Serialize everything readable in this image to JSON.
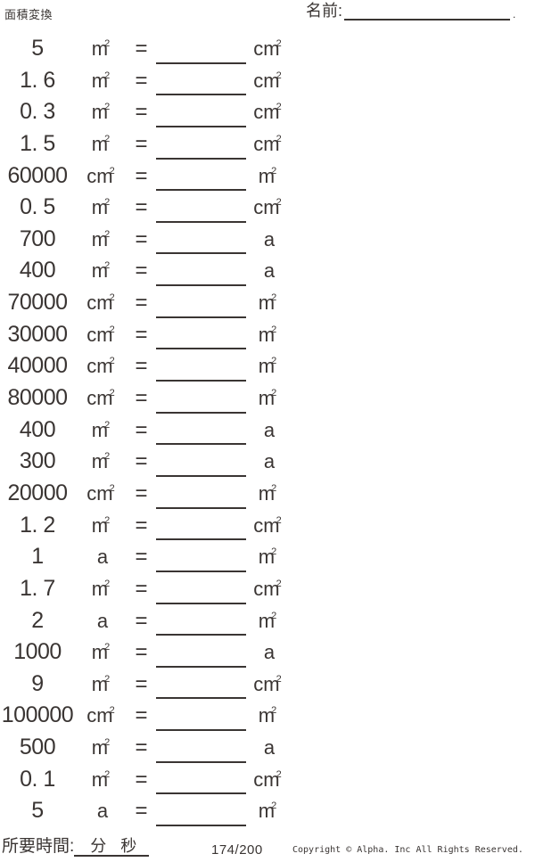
{
  "page": {
    "title": "面積変換",
    "name_label": "名前:",
    "name_suffix": "."
  },
  "colors": {
    "ink": "#3a3533",
    "background": "#ffffff"
  },
  "equals_sign": "=",
  "problems": [
    {
      "value": "5",
      "from_base": "m",
      "from_sup": "2",
      "to_base": "cm",
      "to_sup": "2"
    },
    {
      "value": "1. 6",
      "from_base": "m",
      "from_sup": "2",
      "to_base": "cm",
      "to_sup": "2"
    },
    {
      "value": "0. 3",
      "from_base": "m",
      "from_sup": "2",
      "to_base": "cm",
      "to_sup": "2"
    },
    {
      "value": "1. 5",
      "from_base": "m",
      "from_sup": "2",
      "to_base": "cm",
      "to_sup": "2"
    },
    {
      "value": "60000",
      "from_base": "cm",
      "from_sup": "2",
      "to_base": "m",
      "to_sup": "2"
    },
    {
      "value": "0. 5",
      "from_base": "m",
      "from_sup": "2",
      "to_base": "cm",
      "to_sup": "2"
    },
    {
      "value": "700",
      "from_base": "m",
      "from_sup": "2",
      "to_base": "a",
      "to_sup": ""
    },
    {
      "value": "400",
      "from_base": "m",
      "from_sup": "2",
      "to_base": "a",
      "to_sup": ""
    },
    {
      "value": "70000",
      "from_base": "cm",
      "from_sup": "2",
      "to_base": "m",
      "to_sup": "2"
    },
    {
      "value": "30000",
      "from_base": "cm",
      "from_sup": "2",
      "to_base": "m",
      "to_sup": "2"
    },
    {
      "value": "40000",
      "from_base": "cm",
      "from_sup": "2",
      "to_base": "m",
      "to_sup": "2"
    },
    {
      "value": "80000",
      "from_base": "cm",
      "from_sup": "2",
      "to_base": "m",
      "to_sup": "2"
    },
    {
      "value": "400",
      "from_base": "m",
      "from_sup": "2",
      "to_base": "a",
      "to_sup": ""
    },
    {
      "value": "300",
      "from_base": "m",
      "from_sup": "2",
      "to_base": "a",
      "to_sup": ""
    },
    {
      "value": "20000",
      "from_base": "cm",
      "from_sup": "2",
      "to_base": "m",
      "to_sup": "2"
    },
    {
      "value": "1. 2",
      "from_base": "m",
      "from_sup": "2",
      "to_base": "cm",
      "to_sup": "2"
    },
    {
      "value": "1",
      "from_base": "a",
      "from_sup": "",
      "to_base": "m",
      "to_sup": "2"
    },
    {
      "value": "1. 7",
      "from_base": "m",
      "from_sup": "2",
      "to_base": "cm",
      "to_sup": "2"
    },
    {
      "value": "2",
      "from_base": "a",
      "from_sup": "",
      "to_base": "m",
      "to_sup": "2"
    },
    {
      "value": "1000",
      "from_base": "m",
      "from_sup": "2",
      "to_base": "a",
      "to_sup": ""
    },
    {
      "value": "9",
      "from_base": "m",
      "from_sup": "2",
      "to_base": "cm",
      "to_sup": "2"
    },
    {
      "value": "100000",
      "from_base": "cm",
      "from_sup": "2",
      "to_base": "m",
      "to_sup": "2"
    },
    {
      "value": "500",
      "from_base": "m",
      "from_sup": "2",
      "to_base": "a",
      "to_sup": ""
    },
    {
      "value": "0. 1",
      "from_base": "m",
      "from_sup": "2",
      "to_base": "cm",
      "to_sup": "2"
    },
    {
      "value": "5",
      "from_base": "a",
      "from_sup": "",
      "to_base": "m",
      "to_sup": "2"
    }
  ],
  "footer": {
    "time_label": "所要時間:",
    "minutes_label": "分",
    "seconds_label": "秒",
    "page_number": "174/200",
    "copyright": "Copyright © Alpha. Inc All Rights Reserved."
  }
}
